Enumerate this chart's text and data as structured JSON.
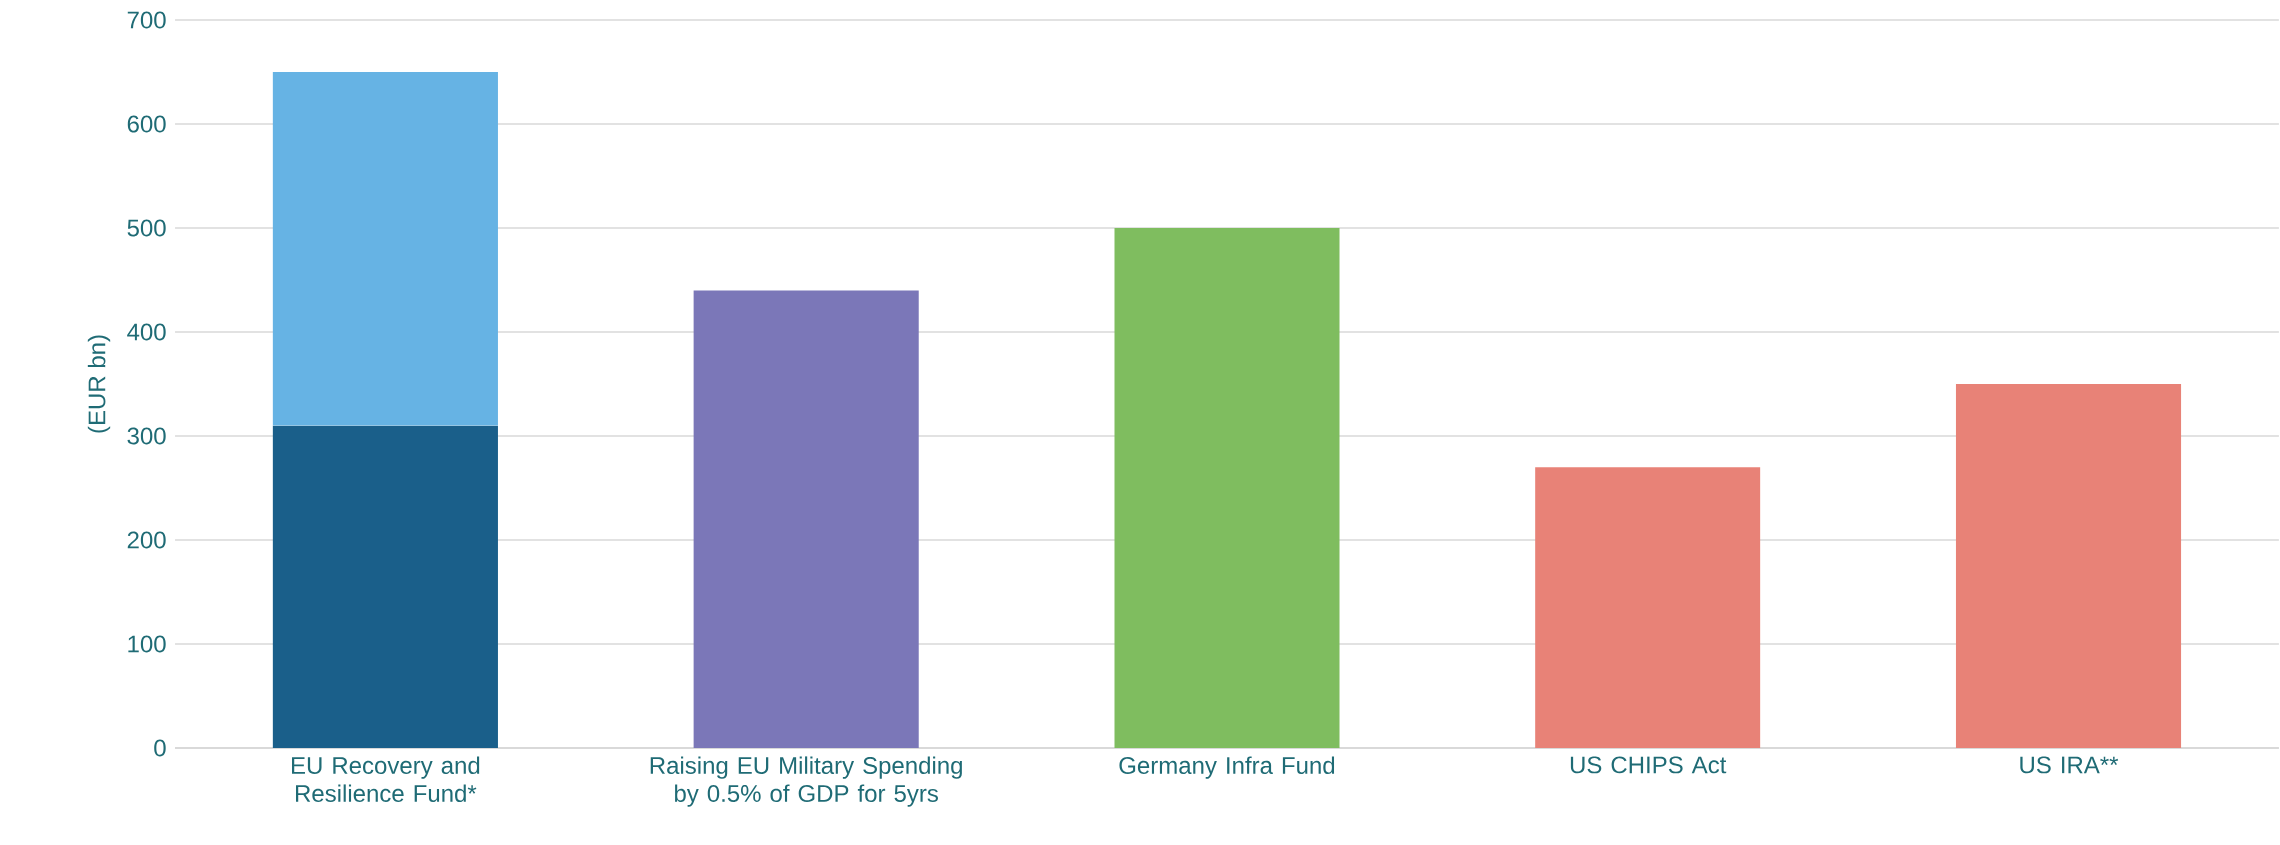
{
  "chart_data": {
    "type": "bar",
    "stacked": true,
    "ylabel": "(EUR bn)",
    "categories": [
      "EU Recovery and Resilience Fund*",
      "Raising EU Military Spending by 0.5% of GDP for 5yrs",
      "Germany Infra Fund",
      "US CHIPS Act",
      "US IRA**"
    ],
    "series": [
      {
        "colors": [
          "#1a5f8a",
          "#7b77b8",
          "#7fbd5f",
          "#e88277",
          "#e88277"
        ],
        "values": [
          310,
          440,
          500,
          270,
          350
        ]
      },
      {
        "colors": [
          "#66b3e4",
          "#66b3e4",
          "#66b3e4",
          "#66b3e4",
          "#66b3e4"
        ],
        "values": [
          340,
          null,
          null,
          null,
          null
        ]
      }
    ],
    "ylim": [
      0,
      700
    ],
    "yticks": [
      0,
      100,
      200,
      300,
      400,
      500,
      600,
      700
    ],
    "grid": "y"
  }
}
